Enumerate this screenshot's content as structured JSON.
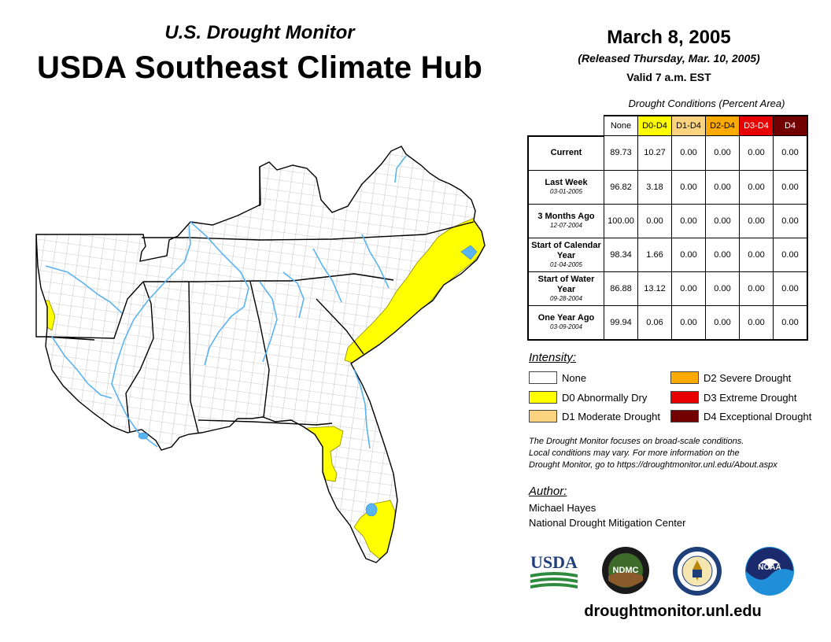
{
  "header": {
    "subtitle": "U.S. Drought Monitor",
    "title": "USDA Southeast Climate Hub",
    "date": "March 8, 2005",
    "released": "(Released Thursday, Mar. 10, 2005)",
    "valid": "Valid 7 a.m. EST"
  },
  "table": {
    "caption": "Drought Conditions (Percent Area)",
    "columns": [
      "None",
      "D0-D4",
      "D1-D4",
      "D2-D4",
      "D3-D4",
      "D4"
    ],
    "column_colors": [
      "#ffffff",
      "#ffff00",
      "#fcd37f",
      "#ffaa00",
      "#e60000",
      "#730000"
    ],
    "column_text_colors": [
      "#000000",
      "#000000",
      "#000000",
      "#000000",
      "#ffffff",
      "#ffffff"
    ],
    "rows": [
      {
        "label": "Current",
        "date": "",
        "values": [
          "89.73",
          "10.27",
          "0.00",
          "0.00",
          "0.00",
          "0.00"
        ]
      },
      {
        "label": "Last Week",
        "date": "03-01-2005",
        "values": [
          "96.82",
          "3.18",
          "0.00",
          "0.00",
          "0.00",
          "0.00"
        ]
      },
      {
        "label": "3 Months Ago",
        "date": "12-07-2004",
        "values": [
          "100.00",
          "0.00",
          "0.00",
          "0.00",
          "0.00",
          "0.00"
        ]
      },
      {
        "label": "Start of Calendar Year",
        "date": "01-04-2005",
        "values": [
          "98.34",
          "1.66",
          "0.00",
          "0.00",
          "0.00",
          "0.00"
        ]
      },
      {
        "label": "Start of Water Year",
        "date": "09-28-2004",
        "values": [
          "86.88",
          "13.12",
          "0.00",
          "0.00",
          "0.00",
          "0.00"
        ]
      },
      {
        "label": "One Year Ago",
        "date": "03-09-2004",
        "values": [
          "99.94",
          "0.06",
          "0.00",
          "0.00",
          "0.00",
          "0.00"
        ]
      }
    ]
  },
  "legend": {
    "title": "Intensity:",
    "items": [
      {
        "label": "None",
        "color": "#ffffff"
      },
      {
        "label": "D0 Abnormally Dry",
        "color": "#ffff00"
      },
      {
        "label": "D1 Moderate Drought",
        "color": "#fcd37f"
      },
      {
        "label": "D2 Severe Drought",
        "color": "#ffaa00"
      },
      {
        "label": "D3 Extreme Drought",
        "color": "#e60000"
      },
      {
        "label": "D4 Exceptional Drought",
        "color": "#730000"
      }
    ]
  },
  "note": {
    "line1": "The Drought Monitor focuses on broad-scale conditions.",
    "line2": "Local conditions may vary. For more information on the",
    "line3": "Drought Monitor, go to https://droughtmonitor.unl.edu/About.aspx"
  },
  "author": {
    "title": "Author:",
    "name": "Michael Hayes",
    "org": "National Drought Mitigation Center"
  },
  "logos": {
    "usda": "USDA",
    "ndmc": "NDMC",
    "noaa": "NOAA"
  },
  "website": "droughtmonitor.unl.edu",
  "map": {
    "region": "Southeast",
    "colors": {
      "state_fill": "#ffffff",
      "county_line": "#9a9a9a",
      "state_line": "#000000",
      "water": "#5ab4f0",
      "d0": "#ffff00"
    }
  }
}
